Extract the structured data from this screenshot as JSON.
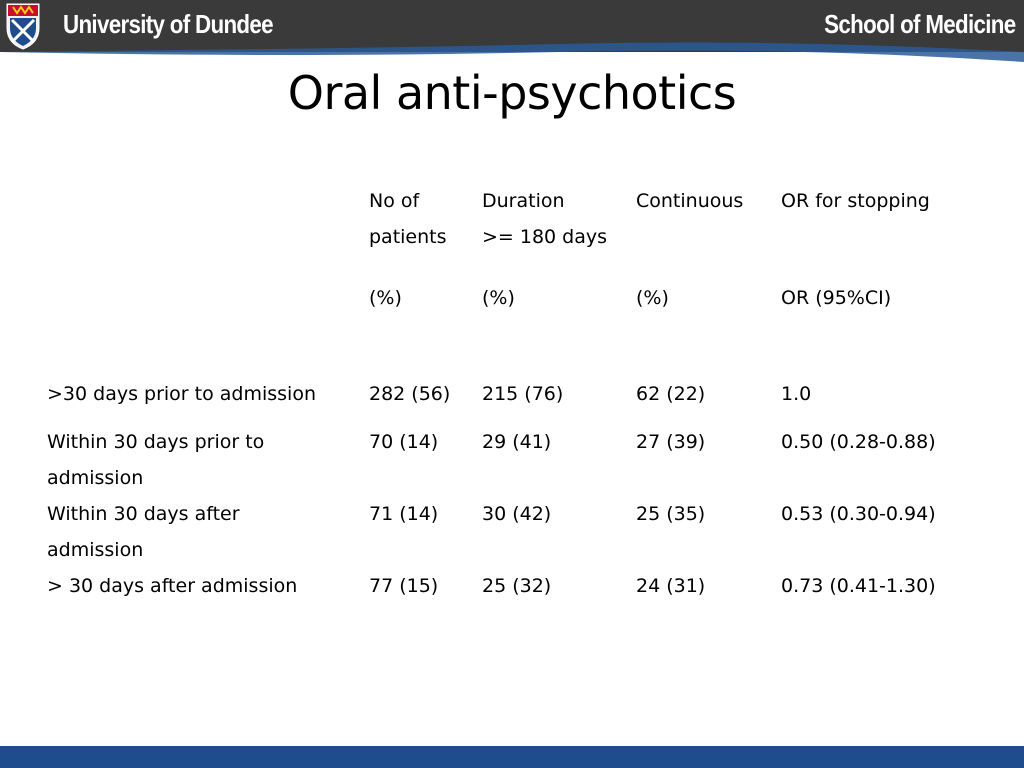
{
  "header": {
    "left": "University of Dundee",
    "right": "School of Medicine"
  },
  "title": "Oral anti-psychotics",
  "table": {
    "headers": [
      {
        "line1": "No of",
        "line2": "patients",
        "unit": "(%)"
      },
      {
        "line1": "Duration",
        "line2": ">= 180 days",
        "unit": "(%)"
      },
      {
        "line1": "Continuous",
        "line2": "",
        "unit": "(%)"
      },
      {
        "line1": "OR for stopping",
        "line2": "",
        "unit": "OR (95%CI)"
      }
    ],
    "rows": [
      {
        "label1": ">30 days prior to admission",
        "label2": "",
        "values": [
          "282 (56)",
          "215 (76)",
          "62 (22)",
          "1.0"
        ]
      },
      {
        "label1": "Within 30 days prior to",
        "label2": "admission",
        "values": [
          "70 (14)",
          "29 (41)",
          "27 (39)",
          "0.50 (0.28-0.88)"
        ]
      },
      {
        "label1": "Within 30 days after",
        "label2": "admission",
        "values": [
          "71 (14)",
          "30 (42)",
          "25 (35)",
          "0.53 (0.30-0.94)"
        ]
      },
      {
        "label1": "> 30 days after admission",
        "label2": "",
        "values": [
          "77 (15)",
          "25 (32)",
          "24 (31)",
          "0.73 (0.41-1.30)"
        ]
      }
    ]
  },
  "colors": {
    "header_bg": "#3a3a3a",
    "swoosh": "#2a5a98",
    "footer": "#1f4c8c"
  }
}
